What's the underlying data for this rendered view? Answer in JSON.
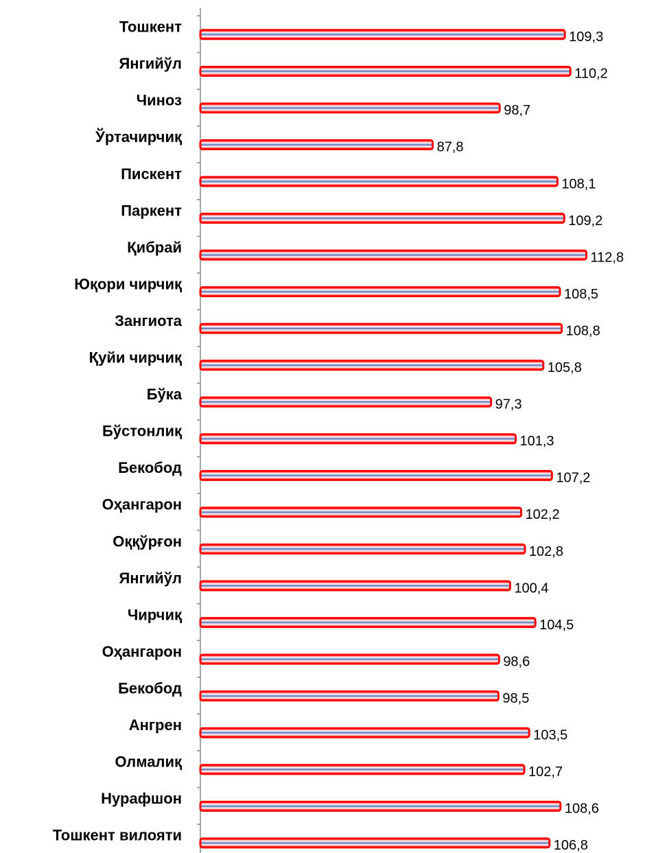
{
  "chart_data": {
    "type": "barh",
    "categories": [
      "Тошкент",
      "Янгийўл",
      "Чиноз",
      "Ўртачирчиқ",
      "Пискент",
      "Паркент",
      "Қибрай",
      "Юқори чирчиқ",
      "Зангиота",
      "Қуйи чирчиқ",
      "Бўка",
      "Бўстонлиқ",
      "Бекобод",
      "Оҳангарон",
      "Оққўрғон",
      "Янгийўл",
      "Чирчиқ",
      "Оҳангарон",
      "Бекобод",
      "Ангрен",
      "Олмалиқ",
      "Нурафшон",
      "Тошкент вилояти"
    ],
    "values": [
      109.3,
      110.2,
      98.7,
      87.8,
      108.1,
      109.2,
      112.8,
      108.5,
      108.8,
      105.8,
      97.3,
      101.3,
      107.2,
      102.2,
      102.8,
      100.4,
      104.5,
      98.6,
      98.5,
      103.5,
      102.7,
      108.6,
      106.8
    ],
    "value_labels": [
      "109,3",
      "110,2",
      "98,7",
      "87,8",
      "108,1",
      "109,2",
      "112,8",
      "108,5",
      "108,8",
      "105,8",
      "97,3",
      "101,3",
      "107,2",
      "102,2",
      "102,8",
      "100,4",
      "104,5",
      "98,6",
      "98,5",
      "103,5",
      "102,7",
      "108,6",
      "106,8"
    ],
    "color": "#ff0000",
    "xlim": [
      50,
      120
    ]
  }
}
